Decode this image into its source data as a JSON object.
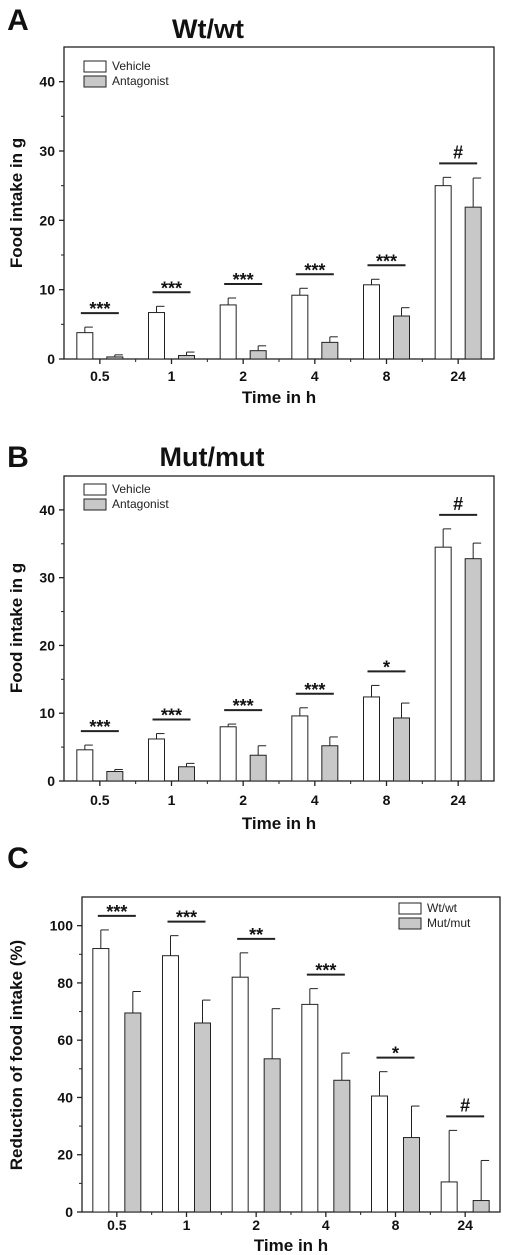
{
  "colors": {
    "bar_a": "#ffffff",
    "bar_b": "#c8c8c8",
    "stroke": "#222222"
  },
  "chart_data": [
    {
      "type": "bar",
      "panel": "A",
      "title": "Wt/wt",
      "xlabel": "Time in h",
      "ylabel": "Food intake in g",
      "categories": [
        "0.5",
        "1",
        "2",
        "4",
        "8",
        "24"
      ],
      "ylim": [
        0,
        45
      ],
      "yticks": [
        "0",
        "10",
        "20",
        "30",
        "40"
      ],
      "legend_position": "top-left",
      "series": [
        {
          "name": "Vehicle",
          "values": [
            3.8,
            6.7,
            7.8,
            9.2,
            10.7,
            25.0
          ],
          "errors": [
            0.8,
            0.9,
            1.0,
            1.0,
            0.8,
            1.2
          ]
        },
        {
          "name": "Antagonist",
          "values": [
            0.3,
            0.5,
            1.2,
            2.4,
            6.2,
            21.9
          ],
          "errors": [
            0.3,
            0.5,
            0.7,
            0.8,
            1.2,
            4.2
          ]
        }
      ],
      "significance": [
        "***",
        "***",
        "***",
        "***",
        "***",
        "#"
      ]
    },
    {
      "type": "bar",
      "panel": "B",
      "title": "Mut/mut",
      "xlabel": "Time in h",
      "ylabel": "Food intake in g",
      "categories": [
        "0.5",
        "1",
        "2",
        "4",
        "8",
        "24"
      ],
      "ylim": [
        0,
        45
      ],
      "yticks": [
        "0",
        "10",
        "20",
        "30",
        "40"
      ],
      "legend_position": "top-left",
      "series": [
        {
          "name": "Vehicle",
          "values": [
            4.6,
            6.2,
            8.0,
            9.6,
            12.4,
            34.5
          ],
          "errors": [
            0.7,
            0.8,
            0.4,
            1.2,
            1.7,
            2.7
          ]
        },
        {
          "name": "Antagonist",
          "values": [
            1.4,
            2.1,
            3.8,
            5.2,
            9.3,
            32.8
          ],
          "errors": [
            0.3,
            0.5,
            1.4,
            1.3,
            2.2,
            2.3
          ]
        }
      ],
      "significance": [
        "***",
        "***",
        "***",
        "***",
        "*",
        "#"
      ]
    },
    {
      "type": "bar",
      "panel": "C",
      "title": "",
      "xlabel": "Time in h",
      "ylabel": "Reduction of food intake (%)",
      "categories": [
        "0.5",
        "1",
        "2",
        "4",
        "8",
        "24"
      ],
      "ylim": [
        0,
        110
      ],
      "yticks": [
        "0",
        "20",
        "40",
        "60",
        "80",
        "100"
      ],
      "legend_position": "top-right",
      "series": [
        {
          "name": "Wt/wt",
          "values": [
            92,
            89.5,
            82,
            72.5,
            40.5,
            10.5
          ],
          "errors": [
            6.5,
            7,
            8.5,
            5.5,
            8.5,
            18
          ]
        },
        {
          "name": "Mut/mut",
          "values": [
            69.5,
            66,
            53.5,
            46,
            26,
            4
          ],
          "errors": [
            7.5,
            8,
            17.5,
            9.5,
            11,
            14
          ]
        }
      ],
      "significance": [
        "***",
        "***",
        "**",
        "***",
        "*",
        "#"
      ]
    }
  ]
}
